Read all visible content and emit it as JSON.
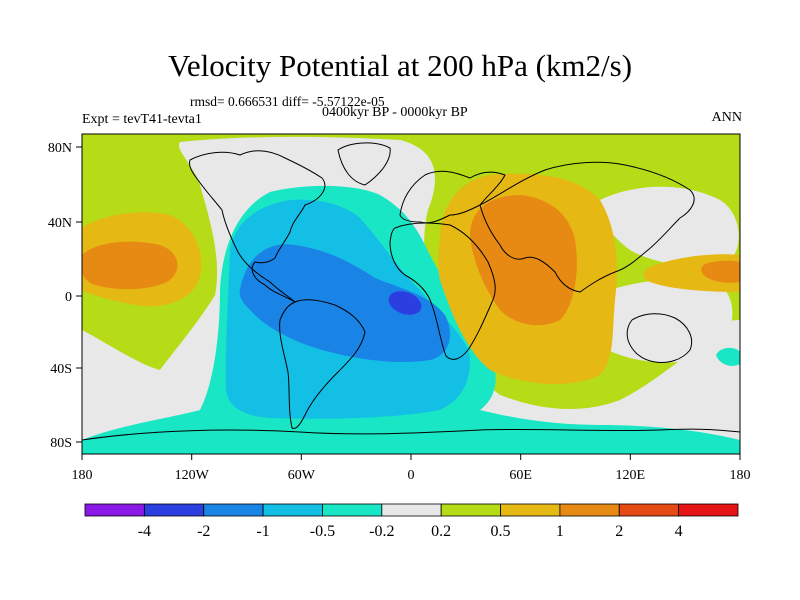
{
  "title": "Velocity Potential at 200 hPa (km2/s)",
  "stats": "rmsd= 0.666531 diff= -5.57122e-05",
  "experiment": "Expt = tevT41-tevta1",
  "period": "0400kyr BP - 0000kyr BP",
  "season": "ANN",
  "lon_ticks": [
    "180",
    "120W",
    "60W",
    "0",
    "60E",
    "120E",
    "180"
  ],
  "lat_ticks": [
    "80N",
    "40N",
    "0",
    "40S",
    "80S"
  ],
  "colorbar": {
    "labels": [
      "-4",
      "-2",
      "-1",
      "-0.5",
      "-0.2",
      "0.2",
      "0.5",
      "1",
      "2",
      "4"
    ],
    "colors": [
      "#8b19e6",
      "#2b3fe0",
      "#1a84e6",
      "#14bfe6",
      "#19e6c4",
      "#e8e8e8",
      "#b5dc17",
      "#e6b814",
      "#e68a14",
      "#e64a14",
      "#e61414"
    ]
  },
  "map": {
    "projection": "cylindrical equidistant",
    "region": "global",
    "fields": [
      {
        "name": "background",
        "color": "#b5dc17"
      },
      {
        "name": "near-zero-band",
        "color": "#e8e8e8"
      },
      {
        "name": "negative-weak",
        "color": "#19e6c4"
      },
      {
        "name": "negative-moderate",
        "color": "#14bfe6"
      },
      {
        "name": "negative-strong",
        "color": "#1a84e6"
      },
      {
        "name": "negative-minimum",
        "color": "#2b3fe0"
      },
      {
        "name": "positive-weak",
        "color": "#e6b814"
      },
      {
        "name": "positive-moderate",
        "color": "#e68a14"
      }
    ]
  }
}
